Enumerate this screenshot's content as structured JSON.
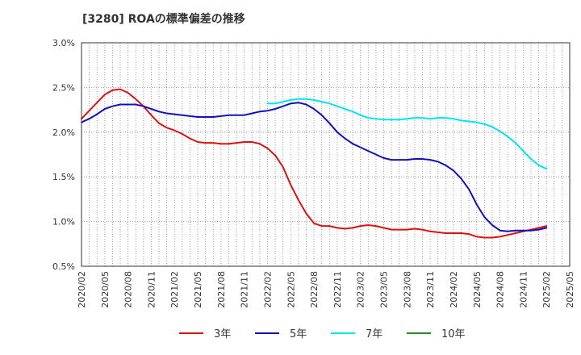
{
  "chart_data": {
    "type": "line",
    "title": "[3280]  ROAの標準偏差の推移",
    "xlabel": "",
    "ylabel": "",
    "ylim": [
      0.5,
      3.0
    ],
    "y_ticks": [
      "0.5%",
      "1.0%",
      "1.5%",
      "2.0%",
      "2.5%",
      "3.0%"
    ],
    "x_ticks": [
      "2020/02",
      "2020/05",
      "2020/08",
      "2020/11",
      "2021/02",
      "2021/05",
      "2021/08",
      "2021/11",
      "2022/02",
      "2022/05",
      "2022/08",
      "2022/11",
      "2023/02",
      "2023/05",
      "2023/08",
      "2023/11",
      "2024/02",
      "2024/05",
      "2024/08",
      "2024/11",
      "2025/02",
      "2025/05"
    ],
    "grid": true,
    "legend_position": "bottom",
    "x_unit": "month",
    "series": [
      {
        "name": "3年",
        "color": "#dd1111",
        "x": [
          "2020/02",
          "2020/03",
          "2020/04",
          "2020/05",
          "2020/06",
          "2020/07",
          "2020/08",
          "2020/09",
          "2020/10",
          "2020/11",
          "2020/12",
          "2021/01",
          "2021/02",
          "2021/03",
          "2021/04",
          "2021/05",
          "2021/06",
          "2021/07",
          "2021/08",
          "2021/09",
          "2021/10",
          "2021/11",
          "2021/12",
          "2022/01",
          "2022/02",
          "2022/03",
          "2022/04",
          "2022/05",
          "2022/06",
          "2022/07",
          "2022/08",
          "2022/09",
          "2022/10",
          "2022/11",
          "2022/12",
          "2023/01",
          "2023/02",
          "2023/03",
          "2023/04",
          "2023/05",
          "2023/06",
          "2023/07",
          "2023/08",
          "2023/09",
          "2023/10",
          "2023/11",
          "2023/12",
          "2024/01",
          "2024/02",
          "2024/03",
          "2024/04",
          "2024/05",
          "2024/06",
          "2024/07",
          "2024/08",
          "2024/09",
          "2024/10",
          "2024/11",
          "2024/12",
          "2025/01",
          "2025/02"
        ],
        "values": [
          2.15,
          2.24,
          2.33,
          2.42,
          2.47,
          2.48,
          2.44,
          2.37,
          2.29,
          2.19,
          2.1,
          2.05,
          2.02,
          1.98,
          1.93,
          1.89,
          1.88,
          1.88,
          1.87,
          1.87,
          1.88,
          1.89,
          1.89,
          1.87,
          1.82,
          1.74,
          1.61,
          1.41,
          1.24,
          1.09,
          0.98,
          0.95,
          0.95,
          0.93,
          0.92,
          0.93,
          0.95,
          0.96,
          0.95,
          0.93,
          0.91,
          0.91,
          0.91,
          0.92,
          0.91,
          0.89,
          0.88,
          0.87,
          0.87,
          0.87,
          0.86,
          0.83,
          0.82,
          0.82,
          0.83,
          0.85,
          0.87,
          0.89,
          0.91,
          0.93,
          0.95
        ]
      },
      {
        "name": "5年",
        "color": "#1111bb",
        "x": [
          "2020/02",
          "2020/03",
          "2020/04",
          "2020/05",
          "2020/06",
          "2020/07",
          "2020/08",
          "2020/09",
          "2020/10",
          "2020/11",
          "2020/12",
          "2021/01",
          "2021/02",
          "2021/03",
          "2021/04",
          "2021/05",
          "2021/06",
          "2021/07",
          "2021/08",
          "2021/09",
          "2021/10",
          "2021/11",
          "2021/12",
          "2022/01",
          "2022/02",
          "2022/03",
          "2022/04",
          "2022/05",
          "2022/06",
          "2022/07",
          "2022/08",
          "2022/09",
          "2022/10",
          "2022/11",
          "2022/12",
          "2023/01",
          "2023/02",
          "2023/03",
          "2023/04",
          "2023/05",
          "2023/06",
          "2023/07",
          "2023/08",
          "2023/09",
          "2023/10",
          "2023/11",
          "2023/12",
          "2024/01",
          "2024/02",
          "2024/03",
          "2024/04",
          "2024/05",
          "2024/06",
          "2024/07",
          "2024/08",
          "2024/09",
          "2024/10",
          "2024/11",
          "2024/12",
          "2025/01",
          "2025/02"
        ],
        "values": [
          2.11,
          2.15,
          2.2,
          2.26,
          2.29,
          2.31,
          2.31,
          2.31,
          2.29,
          2.26,
          2.23,
          2.21,
          2.2,
          2.19,
          2.18,
          2.17,
          2.17,
          2.17,
          2.18,
          2.19,
          2.19,
          2.19,
          2.21,
          2.23,
          2.24,
          2.26,
          2.29,
          2.32,
          2.33,
          2.31,
          2.26,
          2.19,
          2.1,
          2.0,
          1.93,
          1.87,
          1.83,
          1.79,
          1.75,
          1.71,
          1.69,
          1.69,
          1.69,
          1.7,
          1.7,
          1.69,
          1.67,
          1.63,
          1.57,
          1.48,
          1.36,
          1.19,
          1.05,
          0.96,
          0.9,
          0.89,
          0.9,
          0.9,
          0.9,
          0.91,
          0.93
        ]
      },
      {
        "name": "7年",
        "color": "#00e5ee",
        "x": [
          "2022/02",
          "2022/03",
          "2022/04",
          "2022/05",
          "2022/06",
          "2022/07",
          "2022/08",
          "2022/09",
          "2022/10",
          "2022/11",
          "2022/12",
          "2023/01",
          "2023/02",
          "2023/03",
          "2023/04",
          "2023/05",
          "2023/06",
          "2023/07",
          "2023/08",
          "2023/09",
          "2023/10",
          "2023/11",
          "2023/12",
          "2024/01",
          "2024/02",
          "2024/03",
          "2024/04",
          "2024/05",
          "2024/06",
          "2024/07",
          "2024/08",
          "2024/09",
          "2024/10",
          "2024/11",
          "2024/12",
          "2025/01",
          "2025/02"
        ],
        "values": [
          2.32,
          2.32,
          2.34,
          2.36,
          2.37,
          2.37,
          2.36,
          2.34,
          2.32,
          2.29,
          2.26,
          2.23,
          2.19,
          2.16,
          2.15,
          2.14,
          2.14,
          2.14,
          2.15,
          2.16,
          2.16,
          2.15,
          2.16,
          2.16,
          2.15,
          2.13,
          2.12,
          2.11,
          2.09,
          2.06,
          2.01,
          1.95,
          1.88,
          1.79,
          1.7,
          1.63,
          1.59
        ]
      },
      {
        "name": "10年",
        "color": "#228B22",
        "x": [],
        "values": []
      }
    ]
  }
}
